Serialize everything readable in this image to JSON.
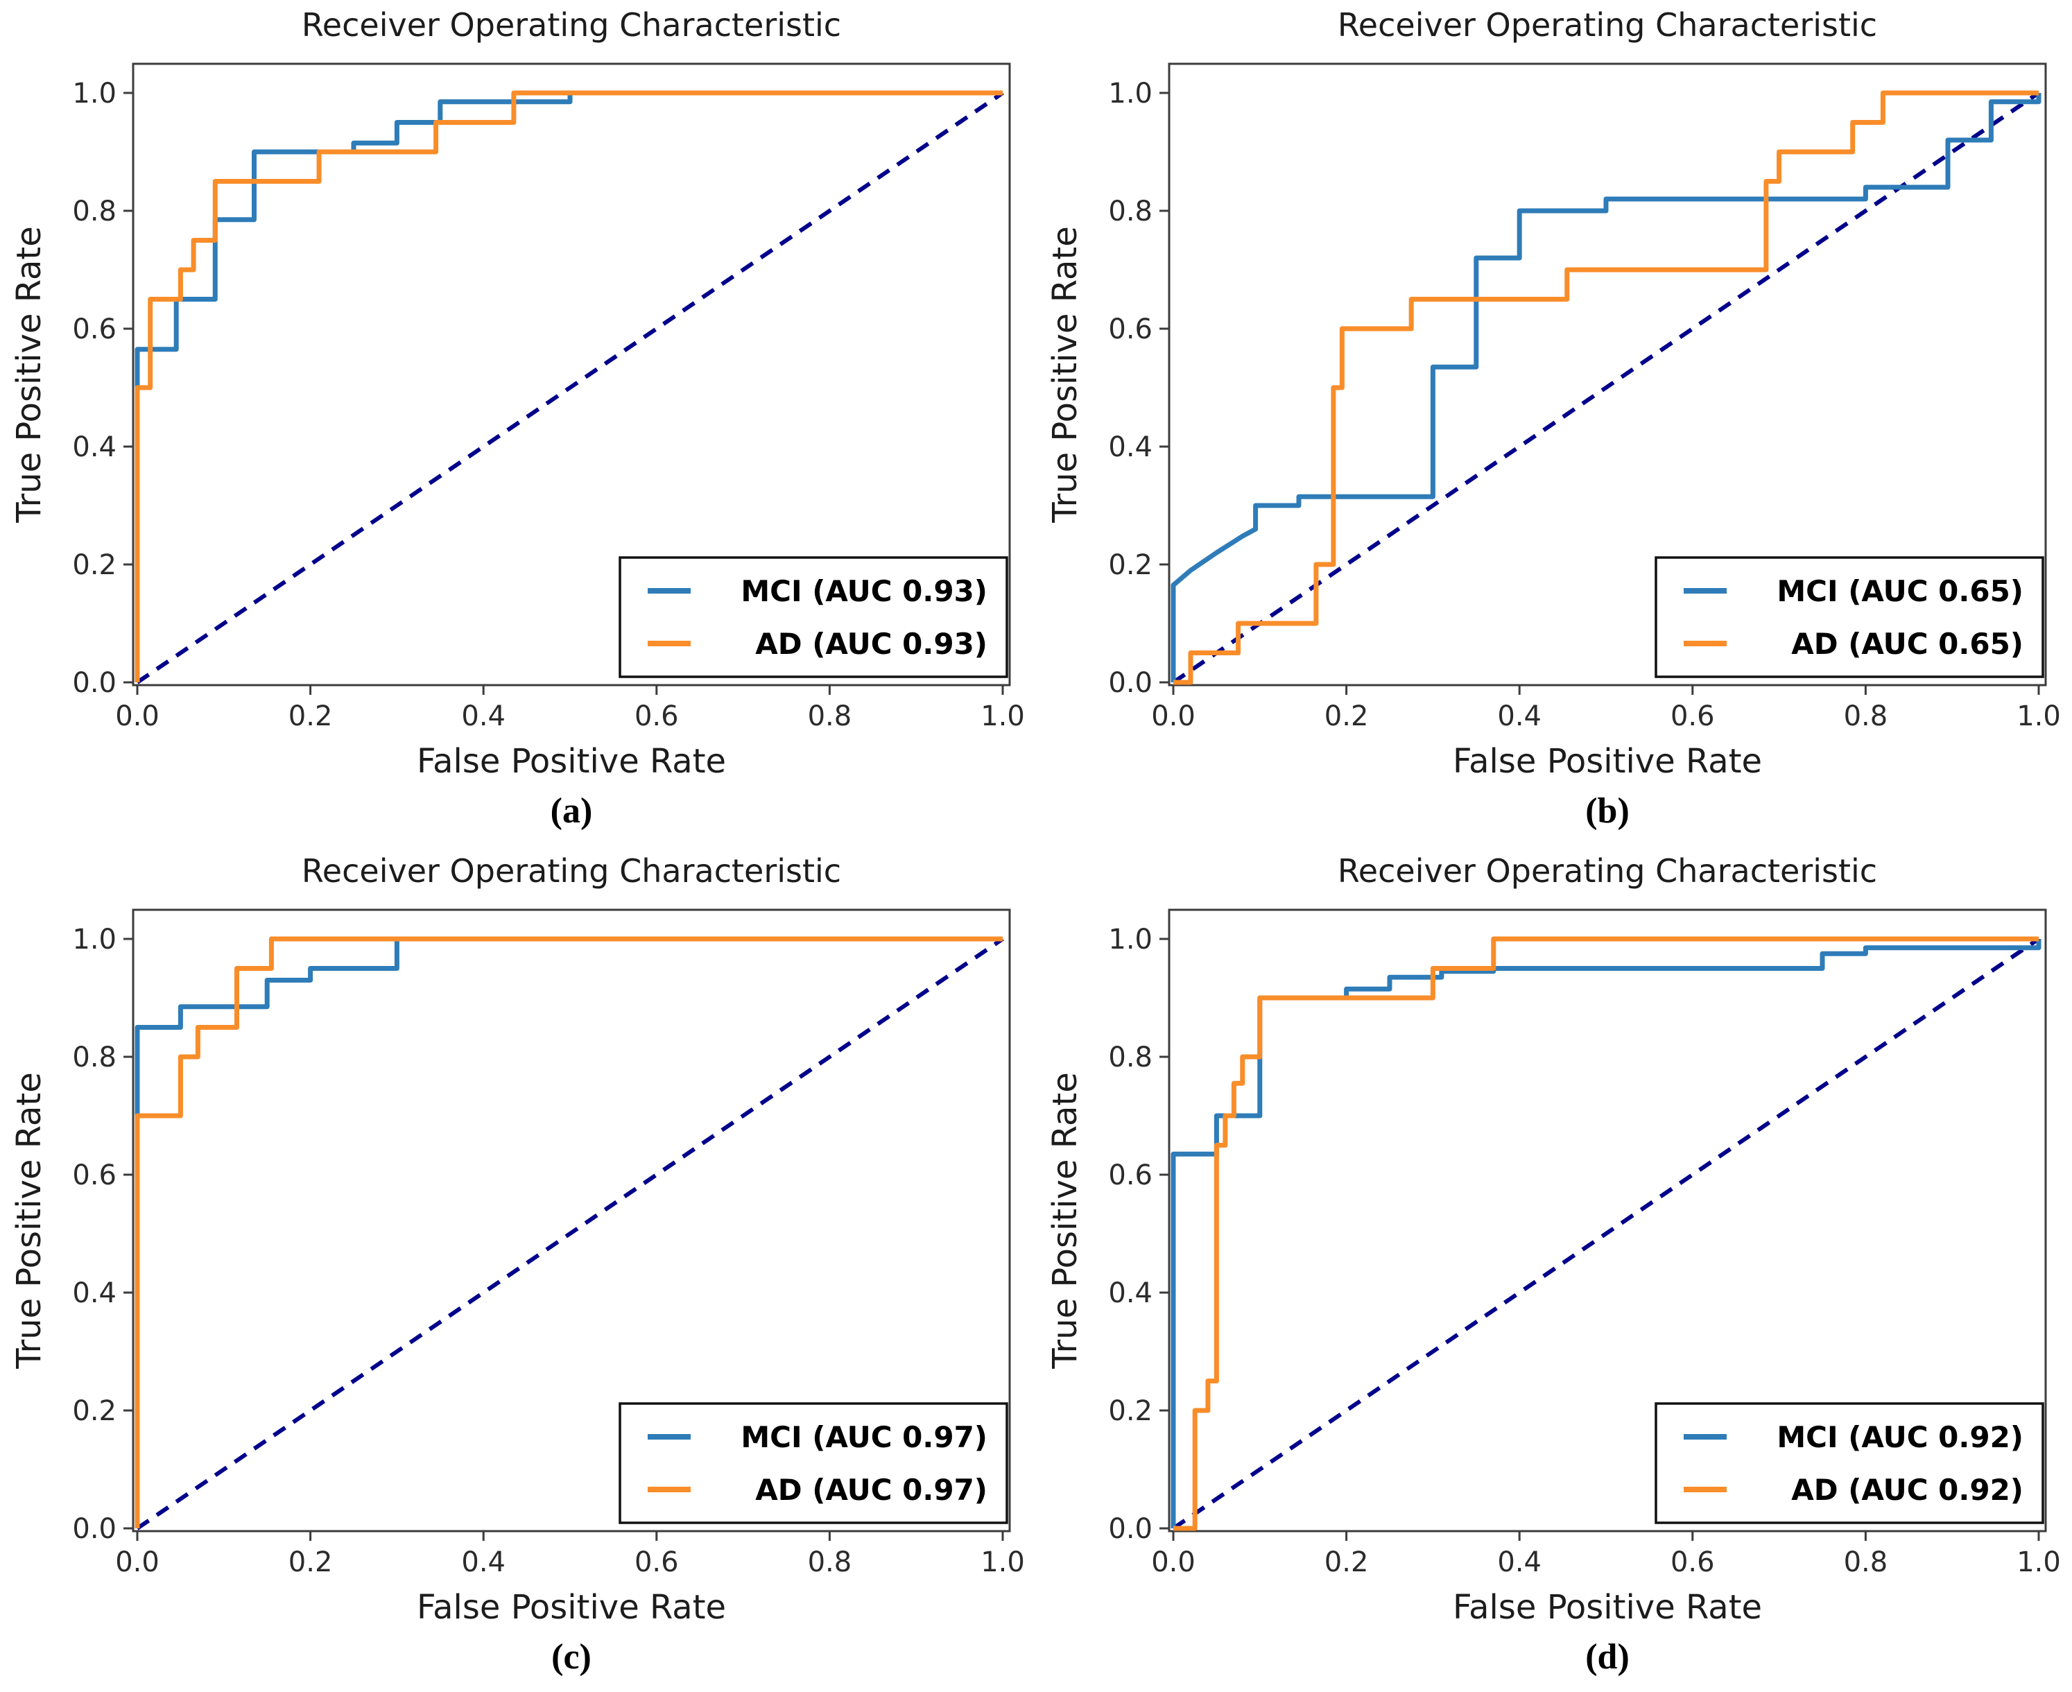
{
  "figure": {
    "colors": {
      "mci": "#2e7cb8",
      "ad": "#f88d2a",
      "diagonal": "#00008b",
      "text": "#1c1c1c",
      "tick_text": "#2b2b2b",
      "spine": "#3c3c3c",
      "legend_border": "#111111",
      "background": "#ffffff"
    }
  },
  "chart_data": [
    {
      "type": "line",
      "caption": "(a)",
      "title": "Receiver Operating Characteristic",
      "xlabel": "False Positive Rate",
      "ylabel": "True Positive Rate",
      "xlim": [
        0.0,
        1.0
      ],
      "ylim": [
        0.0,
        1.0
      ],
      "x_ticks": [
        "0.0",
        "0.2",
        "0.4",
        "0.6",
        "0.8",
        "1.0"
      ],
      "y_ticks": [
        "0.0",
        "0.2",
        "0.4",
        "0.6",
        "0.8",
        "1.0"
      ],
      "grid": false,
      "legend_position": "lower right",
      "diagonal": [
        [
          0,
          0
        ],
        [
          1,
          1
        ]
      ],
      "series": [
        {
          "name": "MCI",
          "auc": "0.93",
          "legend_label": "MCI (AUC 0.93)",
          "color_key": "mci",
          "points": [
            [
              0,
              0
            ],
            [
              0,
              0.565
            ],
            [
              0.045,
              0.565
            ],
            [
              0.045,
              0.65
            ],
            [
              0.09,
              0.65
            ],
            [
              0.09,
              0.785
            ],
            [
              0.135,
              0.785
            ],
            [
              0.135,
              0.9
            ],
            [
              0.25,
              0.9
            ],
            [
              0.25,
              0.915
            ],
            [
              0.3,
              0.915
            ],
            [
              0.3,
              0.95
            ],
            [
              0.35,
              0.95
            ],
            [
              0.35,
              0.985
            ],
            [
              0.5,
              0.985
            ],
            [
              0.5,
              1
            ],
            [
              1,
              1
            ]
          ]
        },
        {
          "name": "AD",
          "auc": "0.93",
          "legend_label": "AD (AUC 0.93)",
          "color_key": "ad",
          "points": [
            [
              0,
              0
            ],
            [
              0,
              0.5
            ],
            [
              0.015,
              0.5
            ],
            [
              0.015,
              0.65
            ],
            [
              0.05,
              0.65
            ],
            [
              0.05,
              0.7
            ],
            [
              0.065,
              0.7
            ],
            [
              0.065,
              0.75
            ],
            [
              0.09,
              0.75
            ],
            [
              0.09,
              0.85
            ],
            [
              0.21,
              0.85
            ],
            [
              0.21,
              0.9
            ],
            [
              0.345,
              0.9
            ],
            [
              0.345,
              0.95
            ],
            [
              0.435,
              0.95
            ],
            [
              0.435,
              1
            ],
            [
              1,
              1
            ]
          ]
        }
      ]
    },
    {
      "type": "line",
      "caption": "(b)",
      "title": "Receiver Operating Characteristic",
      "xlabel": "False Positive Rate",
      "ylabel": "True Positive Rate",
      "xlim": [
        0.0,
        1.0
      ],
      "ylim": [
        0.0,
        1.0
      ],
      "x_ticks": [
        "0.0",
        "0.2",
        "0.4",
        "0.6",
        "0.8",
        "1.0"
      ],
      "y_ticks": [
        "0.0",
        "0.2",
        "0.4",
        "0.6",
        "0.8",
        "1.0"
      ],
      "grid": false,
      "legend_position": "lower right",
      "diagonal": [
        [
          0,
          0
        ],
        [
          1,
          1
        ]
      ],
      "series": [
        {
          "name": "MCI",
          "auc": "0.65",
          "legend_label": "MCI (AUC 0.65)",
          "color_key": "mci",
          "points": [
            [
              0,
              0
            ],
            [
              0,
              0.165
            ],
            [
              0.02,
              0.19
            ],
            [
              0.05,
              0.22
            ],
            [
              0.08,
              0.248
            ],
            [
              0.095,
              0.26
            ],
            [
              0.095,
              0.3
            ],
            [
              0.145,
              0.3
            ],
            [
              0.145,
              0.315
            ],
            [
              0.3,
              0.315
            ],
            [
              0.3,
              0.535
            ],
            [
              0.35,
              0.535
            ],
            [
              0.35,
              0.72
            ],
            [
              0.4,
              0.72
            ],
            [
              0.4,
              0.8
            ],
            [
              0.5,
              0.8
            ],
            [
              0.5,
              0.82
            ],
            [
              0.8,
              0.82
            ],
            [
              0.8,
              0.84
            ],
            [
              0.895,
              0.84
            ],
            [
              0.895,
              0.92
            ],
            [
              0.945,
              0.92
            ],
            [
              0.945,
              0.985
            ],
            [
              1,
              0.985
            ],
            [
              1,
              1
            ]
          ]
        },
        {
          "name": "AD",
          "auc": "0.65",
          "legend_label": "AD (AUC 0.65)",
          "color_key": "ad",
          "points": [
            [
              0,
              0
            ],
            [
              0.02,
              0
            ],
            [
              0.02,
              0.05
            ],
            [
              0.075,
              0.05
            ],
            [
              0.075,
              0.1
            ],
            [
              0.165,
              0.1
            ],
            [
              0.165,
              0.2
            ],
            [
              0.185,
              0.2
            ],
            [
              0.185,
              0.5
            ],
            [
              0.195,
              0.5
            ],
            [
              0.195,
              0.6
            ],
            [
              0.275,
              0.6
            ],
            [
              0.275,
              0.65
            ],
            [
              0.455,
              0.65
            ],
            [
              0.455,
              0.7
            ],
            [
              0.685,
              0.7
            ],
            [
              0.685,
              0.85
            ],
            [
              0.7,
              0.85
            ],
            [
              0.7,
              0.9
            ],
            [
              0.785,
              0.9
            ],
            [
              0.785,
              0.95
            ],
            [
              0.82,
              0.95
            ],
            [
              0.82,
              1
            ],
            [
              1,
              1
            ]
          ]
        }
      ]
    },
    {
      "type": "line",
      "caption": "(c)",
      "title": "Receiver Operating Characteristic",
      "xlabel": "False Positive Rate",
      "ylabel": "True Positive Rate",
      "xlim": [
        0.0,
        1.0
      ],
      "ylim": [
        0.0,
        1.0
      ],
      "x_ticks": [
        "0.0",
        "0.2",
        "0.4",
        "0.6",
        "0.8",
        "1.0"
      ],
      "y_ticks": [
        "0.0",
        "0.2",
        "0.4",
        "0.6",
        "0.8",
        "1.0"
      ],
      "grid": false,
      "legend_position": "lower right",
      "diagonal": [
        [
          0,
          0
        ],
        [
          1,
          1
        ]
      ],
      "series": [
        {
          "name": "MCI",
          "auc": "0.97",
          "legend_label": "MCI (AUC 0.97)",
          "color_key": "mci",
          "points": [
            [
              0,
              0
            ],
            [
              0,
              0.85
            ],
            [
              0.05,
              0.85
            ],
            [
              0.05,
              0.885
            ],
            [
              0.15,
              0.885
            ],
            [
              0.15,
              0.93
            ],
            [
              0.2,
              0.93
            ],
            [
              0.2,
              0.95
            ],
            [
              0.3,
              0.95
            ],
            [
              0.3,
              1
            ],
            [
              1,
              1
            ]
          ]
        },
        {
          "name": "AD",
          "auc": "0.97",
          "legend_label": "AD (AUC 0.97)",
          "color_key": "ad",
          "points": [
            [
              0,
              0
            ],
            [
              0,
              0.7
            ],
            [
              0.05,
              0.7
            ],
            [
              0.05,
              0.8
            ],
            [
              0.07,
              0.8
            ],
            [
              0.07,
              0.85
            ],
            [
              0.115,
              0.85
            ],
            [
              0.115,
              0.95
            ],
            [
              0.155,
              0.95
            ],
            [
              0.155,
              1
            ],
            [
              1,
              1
            ]
          ]
        }
      ]
    },
    {
      "type": "line",
      "caption": "(d)",
      "title": "Receiver Operating Characteristic",
      "xlabel": "False Positive Rate",
      "ylabel": "True Positive Rate",
      "xlim": [
        0.0,
        1.0
      ],
      "ylim": [
        0.0,
        1.0
      ],
      "x_ticks": [
        "0.0",
        "0.2",
        "0.4",
        "0.6",
        "0.8",
        "1.0"
      ],
      "y_ticks": [
        "0.0",
        "0.2",
        "0.4",
        "0.6",
        "0.8",
        "1.0"
      ],
      "grid": false,
      "legend_position": "lower right",
      "diagonal": [
        [
          0,
          0
        ],
        [
          1,
          1
        ]
      ],
      "series": [
        {
          "name": "MCI",
          "auc": "0.92",
          "legend_label": "MCI (AUC 0.92)",
          "color_key": "mci",
          "points": [
            [
              0,
              0
            ],
            [
              0,
              0.635
            ],
            [
              0.05,
              0.635
            ],
            [
              0.05,
              0.7
            ],
            [
              0.1,
              0.7
            ],
            [
              0.1,
              0.9
            ],
            [
              0.2,
              0.9
            ],
            [
              0.2,
              0.915
            ],
            [
              0.25,
              0.915
            ],
            [
              0.25,
              0.935
            ],
            [
              0.31,
              0.935
            ],
            [
              0.31,
              0.945
            ],
            [
              0.37,
              0.945
            ],
            [
              0.37,
              0.95
            ],
            [
              0.75,
              0.95
            ],
            [
              0.75,
              0.975
            ],
            [
              0.8,
              0.975
            ],
            [
              0.8,
              0.985
            ],
            [
              1,
              0.985
            ],
            [
              1,
              1
            ]
          ]
        },
        {
          "name": "AD",
          "auc": "0.92",
          "legend_label": "AD (AUC 0.92)",
          "color_key": "ad",
          "points": [
            [
              0,
              0
            ],
            [
              0.025,
              0
            ],
            [
              0.025,
              0.2
            ],
            [
              0.04,
              0.2
            ],
            [
              0.04,
              0.25
            ],
            [
              0.05,
              0.25
            ],
            [
              0.05,
              0.65
            ],
            [
              0.06,
              0.65
            ],
            [
              0.06,
              0.7
            ],
            [
              0.07,
              0.7
            ],
            [
              0.07,
              0.755
            ],
            [
              0.08,
              0.755
            ],
            [
              0.08,
              0.8
            ],
            [
              0.1,
              0.8
            ],
            [
              0.1,
              0.9
            ],
            [
              0.3,
              0.9
            ],
            [
              0.3,
              0.95
            ],
            [
              0.37,
              0.95
            ],
            [
              0.37,
              1
            ],
            [
              1,
              1
            ]
          ]
        }
      ]
    }
  ]
}
